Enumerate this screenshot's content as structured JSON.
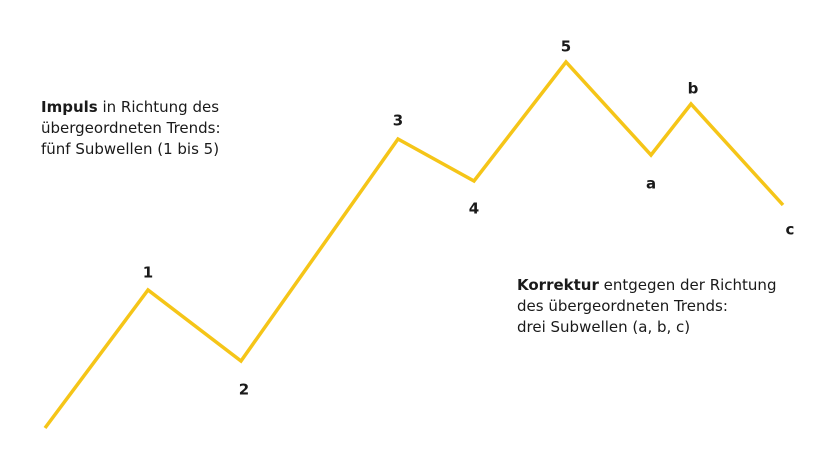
{
  "wave": {
    "line_color": "#F5C518",
    "points": [
      {
        "id": "start",
        "label": ""
      },
      {
        "id": "w1",
        "label": "1"
      },
      {
        "id": "w2",
        "label": "2"
      },
      {
        "id": "w3",
        "label": "3"
      },
      {
        "id": "w4",
        "label": "4"
      },
      {
        "id": "w5",
        "label": "5"
      },
      {
        "id": "wa",
        "label": "a"
      },
      {
        "id": "wb",
        "label": "b"
      },
      {
        "id": "wc",
        "label": "c"
      }
    ]
  },
  "impulse": {
    "keyword": "Impuls",
    "line1_rest": " in Richtung des",
    "line2": "übergeordneten Trends:",
    "line3": "fünf Subwellen (1 bis 5)"
  },
  "correction": {
    "keyword": "Korrektur",
    "line1_rest": " entgegen der Richtung",
    "line2": "des übergeordneten Trends:",
    "line3": "drei Subwellen (a, b, c)"
  }
}
